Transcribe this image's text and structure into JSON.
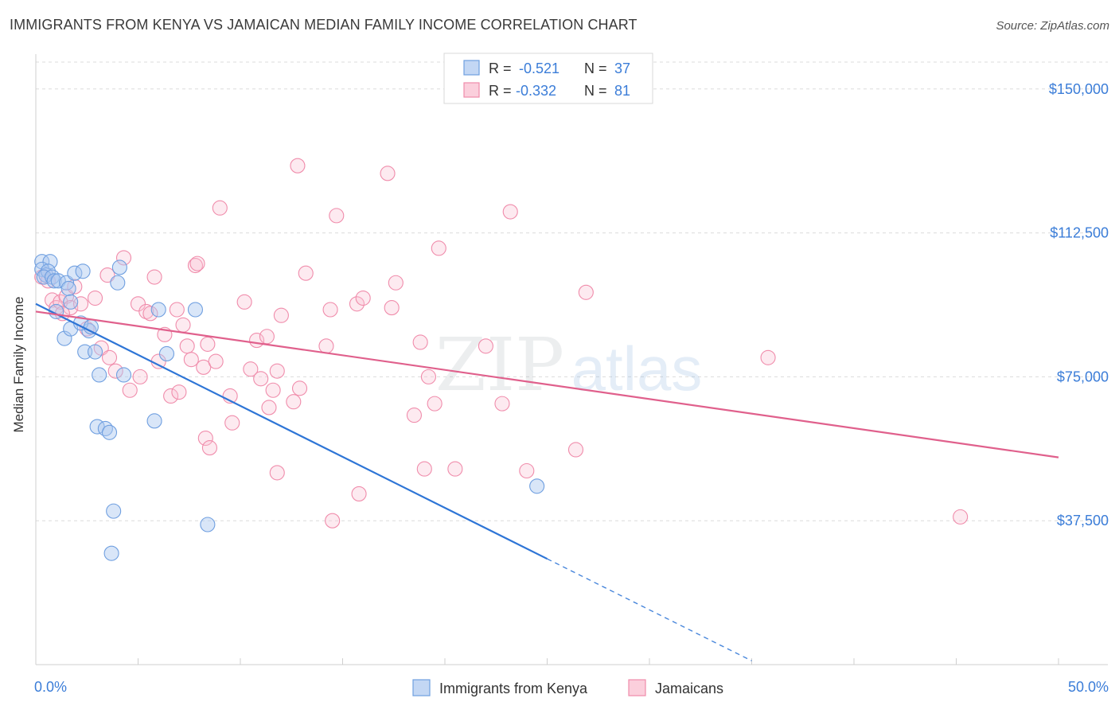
{
  "title": "IMMIGRANTS FROM KENYA VS JAMAICAN MEDIAN FAMILY INCOME CORRELATION CHART",
  "source": "Source: ZipAtlas.com",
  "watermark": {
    "zip": "ZIP",
    "atlas": "atlas"
  },
  "chart_data": {
    "type": "scatter",
    "ylabel": "Median Family Income",
    "xlim": [
      0,
      50
    ],
    "ylim": [
      0,
      157000
    ],
    "x_tick_labels": [
      "0.0%",
      "50.0%"
    ],
    "y_ticks": [
      37500,
      75000,
      112500,
      150000
    ],
    "y_tick_labels": [
      "$37,500",
      "$75,000",
      "$112,500",
      "$150,000"
    ],
    "grid": true,
    "legend_position": "bottom-center",
    "colors": {
      "blue": "#6f9fe0",
      "blue_line": "#2e75d6",
      "pink": "#f08cab",
      "pink_line": "#e0608c",
      "tick_label": "#3b7dd8"
    },
    "stats_box": [
      {
        "r_label": "R = ",
        "r": "-0.521",
        "n_label": "N = ",
        "n": "37",
        "color": "#6f9fe0"
      },
      {
        "r_label": "R = ",
        "r": "-0.332",
        "n_label": "N = ",
        "n": "81",
        "color": "#f08cab"
      }
    ],
    "series": [
      {
        "name": "Immigrants from Kenya",
        "color": "#6f9fe0",
        "points": [
          [
            0.3,
            105000
          ],
          [
            0.7,
            105000
          ],
          [
            0.3,
            103000
          ],
          [
            0.5,
            101500
          ],
          [
            0.6,
            102500
          ],
          [
            0.4,
            101000
          ],
          [
            0.8,
            101000
          ],
          [
            0.9,
            100000
          ],
          [
            1.1,
            100000
          ],
          [
            1.5,
            99500
          ],
          [
            1.6,
            98000
          ],
          [
            1.9,
            102000
          ],
          [
            2.3,
            102500
          ],
          [
            4.1,
            103500
          ],
          [
            4.0,
            99500
          ],
          [
            1.7,
            94500
          ],
          [
            1.0,
            92000
          ],
          [
            1.4,
            85000
          ],
          [
            1.7,
            87500
          ],
          [
            2.6,
            87000
          ],
          [
            2.4,
            81500
          ],
          [
            2.9,
            81500
          ],
          [
            6.0,
            92500
          ],
          [
            7.8,
            92500
          ],
          [
            3.1,
            75500
          ],
          [
            4.3,
            75500
          ],
          [
            6.4,
            81000
          ],
          [
            3.0,
            62000
          ],
          [
            3.4,
            61500
          ],
          [
            3.6,
            60500
          ],
          [
            5.8,
            63500
          ],
          [
            2.2,
            89000
          ],
          [
            24.5,
            46500
          ],
          [
            3.8,
            40000
          ],
          [
            8.4,
            36500
          ],
          [
            3.7,
            29000
          ],
          [
            2.7,
            88000
          ]
        ],
        "trend": {
          "x_start": 0,
          "y_start": 94000,
          "x_solid_end": 25,
          "x_end": 35,
          "y_end": 1000
        }
      },
      {
        "name": "Jamaicans",
        "color": "#f08cab",
        "points": [
          [
            0.3,
            101000
          ],
          [
            0.5,
            101500
          ],
          [
            0.6,
            100000
          ],
          [
            0.8,
            95000
          ],
          [
            1.0,
            93000
          ],
          [
            1.2,
            94500
          ],
          [
            1.5,
            96000
          ],
          [
            1.7,
            93000
          ],
          [
            1.9,
            98500
          ],
          [
            2.2,
            94000
          ],
          [
            2.9,
            95500
          ],
          [
            3.5,
            101500
          ],
          [
            4.3,
            106000
          ],
          [
            5.0,
            94000
          ],
          [
            5.4,
            92000
          ],
          [
            5.6,
            91500
          ],
          [
            5.8,
            101000
          ],
          [
            6.0,
            79000
          ],
          [
            6.3,
            86000
          ],
          [
            6.6,
            70000
          ],
          [
            6.9,
            92500
          ],
          [
            7.0,
            71000
          ],
          [
            7.4,
            83000
          ],
          [
            7.6,
            79500
          ],
          [
            7.8,
            104000
          ],
          [
            7.9,
            104500
          ],
          [
            8.2,
            77500
          ],
          [
            8.4,
            83500
          ],
          [
            8.8,
            79000
          ],
          [
            8.3,
            59000
          ],
          [
            8.5,
            56500
          ],
          [
            9.5,
            70000
          ],
          [
            9.6,
            63000
          ],
          [
            10.2,
            94500
          ],
          [
            10.5,
            77000
          ],
          [
            10.8,
            84500
          ],
          [
            11.0,
            74500
          ],
          [
            11.3,
            85500
          ],
          [
            11.6,
            71500
          ],
          [
            11.8,
            76500
          ],
          [
            11.4,
            67000
          ],
          [
            12.0,
            91000
          ],
          [
            12.6,
            68500
          ],
          [
            12.9,
            72000
          ],
          [
            13.2,
            102000
          ],
          [
            14.2,
            83000
          ],
          [
            14.4,
            92500
          ],
          [
            14.5,
            37500
          ],
          [
            15.7,
            94000
          ],
          [
            16.0,
            95500
          ],
          [
            17.4,
            93000
          ],
          [
            17.6,
            99500
          ],
          [
            18.5,
            65000
          ],
          [
            18.8,
            84000
          ],
          [
            19.2,
            75000
          ],
          [
            19.5,
            68000
          ],
          [
            19.7,
            108500
          ],
          [
            20.5,
            51000
          ],
          [
            22.0,
            83000
          ],
          [
            22.8,
            68000
          ],
          [
            23.2,
            118000
          ],
          [
            24.0,
            50500
          ],
          [
            26.9,
            97000
          ],
          [
            35.8,
            80000
          ],
          [
            45.2,
            38500
          ],
          [
            11.8,
            50000
          ],
          [
            7.2,
            88500
          ],
          [
            9.0,
            119000
          ],
          [
            12.8,
            130000
          ],
          [
            14.7,
            117000
          ],
          [
            17.2,
            128000
          ],
          [
            2.5,
            87500
          ],
          [
            3.2,
            82500
          ],
          [
            3.9,
            76500
          ],
          [
            4.6,
            71500
          ],
          [
            5.1,
            75000
          ],
          [
            15.8,
            44500
          ],
          [
            19.0,
            51000
          ],
          [
            26.4,
            56000
          ],
          [
            1.3,
            91500
          ],
          [
            3.6,
            80000
          ]
        ],
        "trend": {
          "x_start": 0,
          "y_start": 92000,
          "x_end": 50,
          "y_end": 54000
        }
      }
    ]
  }
}
